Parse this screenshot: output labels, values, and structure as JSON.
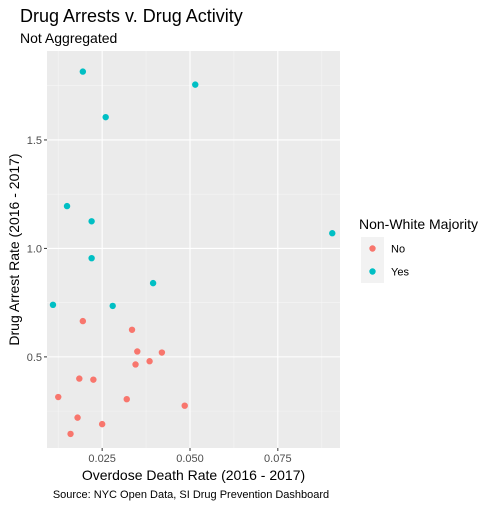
{
  "chart_data": {
    "type": "scatter",
    "title": "Drug Arrests v. Drug Activity",
    "subtitle": "Not Aggregated",
    "xlabel": "Overdose Death Rate (2016 - 2017)",
    "ylabel": "Drug Arrest Rate (2016 - 2017)",
    "caption": "Source: NYC Open Data, SI Drug Prevention Dashboard",
    "xlim": [
      0.0093,
      0.0927
    ],
    "ylim": [
      0.08,
      1.91
    ],
    "x_ticks": [
      0.025,
      0.05,
      0.075
    ],
    "x_tick_labels": [
      "0.025",
      "0.050",
      "0.075"
    ],
    "y_ticks": [
      0.5,
      1.0,
      1.5
    ],
    "y_tick_labels": [
      "0.5",
      "1.0",
      "1.5"
    ],
    "grid": true,
    "legend_title": "Non-White Majority",
    "legend_position": "right",
    "series": [
      {
        "name": "No",
        "color": "#F8766D",
        "points": [
          [
            0.0195,
            0.665
          ],
          [
            0.0335,
            0.625
          ],
          [
            0.035,
            0.525
          ],
          [
            0.042,
            0.52
          ],
          [
            0.0385,
            0.48
          ],
          [
            0.0345,
            0.465
          ],
          [
            0.0185,
            0.4
          ],
          [
            0.0225,
            0.395
          ],
          [
            0.0125,
            0.315
          ],
          [
            0.032,
            0.305
          ],
          [
            0.0485,
            0.275
          ],
          [
            0.018,
            0.22
          ],
          [
            0.025,
            0.19
          ],
          [
            0.016,
            0.145
          ]
        ]
      },
      {
        "name": "Yes",
        "color": "#00BFC4",
        "points": [
          [
            0.0195,
            1.815
          ],
          [
            0.0515,
            1.755
          ],
          [
            0.026,
            1.605
          ],
          [
            0.015,
            1.195
          ],
          [
            0.022,
            1.125
          ],
          [
            0.0905,
            1.07
          ],
          [
            0.022,
            0.955
          ],
          [
            0.0395,
            0.84
          ],
          [
            0.011,
            0.74
          ],
          [
            0.028,
            0.735
          ]
        ]
      }
    ]
  }
}
